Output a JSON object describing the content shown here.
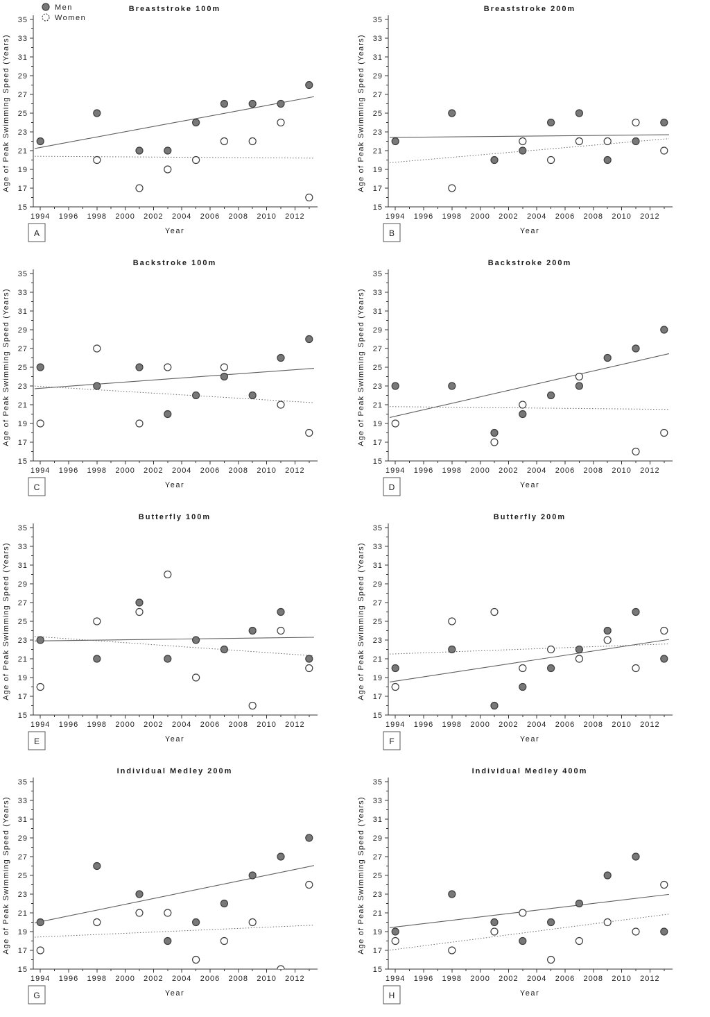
{
  "chart_data": {
    "type": "scatter",
    "grid": "off",
    "layout": {
      "rows": 4,
      "cols": 2,
      "panel_order": [
        "A",
        "B",
        "C",
        "D",
        "E",
        "F",
        "G",
        "H"
      ]
    },
    "axes": {
      "xlabel": "Year",
      "ylabel": "Age of Peak Swimming Speed (Years)",
      "xlim": [
        1993.5,
        2013.5
      ],
      "ylim": [
        15,
        35
      ],
      "x_major_ticks": [
        1994,
        1996,
        1998,
        2000,
        2002,
        2004,
        2006,
        2008,
        2010,
        2012
      ],
      "x_minor_ticks": [
        1995,
        1997,
        1999,
        2001,
        2003,
        2005,
        2007,
        2009,
        2011,
        2013
      ],
      "y_major_ticks": [
        15,
        17,
        19,
        21,
        23,
        25,
        27,
        29,
        31,
        33,
        35
      ],
      "y_minor_ticks": [
        16,
        18,
        20,
        22,
        24,
        26,
        28,
        30,
        32,
        34
      ]
    },
    "legend": {
      "position": "top-left-of-panel-A",
      "items": [
        {
          "label": "Men",
          "marker": "filled-circle",
          "line": "solid"
        },
        {
          "label": "Women",
          "marker": "open-circle-dashed",
          "line": "dotted"
        }
      ]
    },
    "style": {
      "men_fill": "#787878",
      "men_stroke": "#3d3d3d",
      "women_fill": "#ffffff",
      "women_stroke": "#3d3d3d",
      "trend_solid": "#5f5f5f",
      "trend_dotted": "#6a6a6a",
      "axis_color": "#333333",
      "text_color": "#1c1c1c"
    },
    "panels": [
      {
        "letter": "A",
        "title": "Breaststroke 100m",
        "men": {
          "x": [
            1994,
            1998,
            2001,
            2003,
            2005,
            2007,
            2009,
            2011,
            2013
          ],
          "y": [
            22,
            25,
            21,
            21,
            24,
            26,
            26,
            26,
            28
          ],
          "trend": [
            21.2,
            26.8
          ]
        },
        "women": {
          "x": [
            1998,
            2001,
            2003,
            2005,
            2007,
            2009,
            2011,
            2013
          ],
          "y": [
            20,
            17,
            19,
            20,
            22,
            22,
            24,
            16
          ],
          "trend": [
            20.4,
            20.2
          ]
        }
      },
      {
        "letter": "B",
        "title": "Breaststroke 200m",
        "men": {
          "x": [
            1994,
            1998,
            2001,
            2003,
            2005,
            2007,
            2009,
            2011,
            2013
          ],
          "y": [
            22,
            25,
            20,
            21,
            24,
            25,
            20,
            22,
            24
          ],
          "trend": [
            22.4,
            22.7
          ]
        },
        "women": {
          "x": [
            1998,
            2003,
            2005,
            2007,
            2009,
            2011,
            2013
          ],
          "y": [
            17,
            22,
            20,
            22,
            22,
            24,
            21
          ],
          "trend": [
            19.7,
            22.3
          ]
        }
      },
      {
        "letter": "C",
        "title": "Backstroke 100m",
        "men": {
          "x": [
            1994,
            1998,
            2001,
            2003,
            2005,
            2007,
            2009,
            2011,
            2013
          ],
          "y": [
            25,
            23,
            25,
            20,
            22,
            24,
            22,
            26,
            28
          ],
          "trend": [
            22.7,
            24.9
          ]
        },
        "women": {
          "x": [
            1994,
            1998,
            2001,
            2003,
            2007,
            2011,
            2013
          ],
          "y": [
            19,
            27,
            19,
            25,
            25,
            21,
            18
          ],
          "trend": [
            23.0,
            21.2
          ]
        }
      },
      {
        "letter": "D",
        "title": "Backstroke 200m",
        "men": {
          "x": [
            1994,
            1998,
            2001,
            2003,
            2005,
            2007,
            2009,
            2011,
            2013
          ],
          "y": [
            23,
            23,
            18,
            20,
            22,
            23,
            26,
            27,
            29
          ],
          "trend": [
            19.6,
            26.5
          ]
        },
        "women": {
          "x": [
            1994,
            2001,
            2003,
            2007,
            2011,
            2013
          ],
          "y": [
            19,
            17,
            21,
            24,
            16,
            18
          ],
          "trend": [
            20.8,
            20.5
          ]
        }
      },
      {
        "letter": "E",
        "title": "Butterfly 100m",
        "men": {
          "x": [
            1994,
            1998,
            2001,
            2003,
            2005,
            2007,
            2009,
            2011,
            2013
          ],
          "y": [
            23,
            21,
            27,
            21,
            23,
            22,
            24,
            26,
            21
          ],
          "trend": [
            22.9,
            23.3
          ]
        },
        "women": {
          "x": [
            1994,
            1998,
            2001,
            2003,
            2005,
            2009,
            2011,
            2013
          ],
          "y": [
            18,
            25,
            26,
            30,
            19,
            16,
            24,
            20
          ],
          "trend": [
            23.4,
            21.3
          ]
        }
      },
      {
        "letter": "F",
        "title": "Butterfly 200m",
        "men": {
          "x": [
            1994,
            1998,
            2001,
            2003,
            2005,
            2007,
            2009,
            2011,
            2013
          ],
          "y": [
            20,
            22,
            16,
            18,
            20,
            22,
            24,
            26,
            21
          ],
          "trend": [
            18.5,
            23.1
          ]
        },
        "women": {
          "x": [
            1994,
            1998,
            2001,
            2003,
            2005,
            2007,
            2009,
            2011,
            2013
          ],
          "y": [
            18,
            25,
            26,
            20,
            22,
            21,
            23,
            20,
            24
          ],
          "trend": [
            21.5,
            22.6
          ]
        }
      },
      {
        "letter": "G",
        "title": "Individual Medley 200m",
        "men": {
          "x": [
            1994,
            1998,
            2001,
            2003,
            2005,
            2007,
            2009,
            2011,
            2013
          ],
          "y": [
            20,
            26,
            23,
            18,
            20,
            22,
            25,
            27,
            29
          ],
          "trend": [
            19.9,
            26.1
          ]
        },
        "women": {
          "x": [
            1994,
            1998,
            2001,
            2003,
            2005,
            2007,
            2009,
            2011,
            2013
          ],
          "y": [
            17,
            20,
            21,
            21,
            16,
            18,
            20,
            15,
            24
          ],
          "trend": [
            18.4,
            19.7
          ]
        }
      },
      {
        "letter": "H",
        "title": "Individual Medley 400m",
        "men": {
          "x": [
            1994,
            1998,
            2001,
            2003,
            2005,
            2007,
            2009,
            2011,
            2013
          ],
          "y": [
            19,
            23,
            20,
            18,
            20,
            22,
            25,
            27,
            19
          ],
          "trend": [
            19.4,
            23.0
          ]
        },
        "women": {
          "x": [
            1994,
            1998,
            2001,
            2003,
            2005,
            2007,
            2009,
            2011,
            2013
          ],
          "y": [
            18,
            17,
            19,
            21,
            16,
            18,
            20,
            19,
            24
          ],
          "trend": [
            17.0,
            20.9
          ]
        }
      }
    ]
  }
}
